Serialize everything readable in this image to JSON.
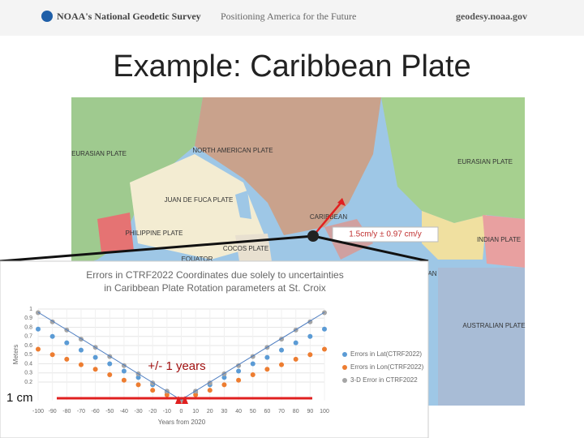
{
  "header": {
    "org": "NOAA's National Geodetic Survey",
    "tagline": "Positioning America for the Future",
    "url": "geodesy.noaa.gov"
  },
  "slide": {
    "title": "Example: Caribbean Plate"
  },
  "map": {
    "plate_labels": [
      "EURASIAN PLATE",
      "NORTH AMERICAN PLATE",
      "JUAN DE FUCA PLATE",
      "PHILIPPINE PLATE",
      "CARIBBEAN",
      "COCOS PLATE",
      "EQUATOR",
      "EURASIAN PLATE",
      "INDIAN PLATE",
      "AN",
      "AUSTRALIAN PLATE"
    ],
    "callout": "1.5cm/y ± 0.97 cm/y"
  },
  "chart_data": {
    "type": "scatter",
    "title": [
      "Errors in CTRF2022 Coordinates due solely to uncertainties",
      "in Caribbean Plate Rotation parameters at St. Croix"
    ],
    "x_label": "Years from 2020",
    "y_label": "Meters",
    "x": [
      -100,
      -90,
      -80,
      -70,
      -60,
      -50,
      -40,
      -30,
      -20,
      -10,
      0,
      10,
      20,
      30,
      40,
      50,
      60,
      70,
      80,
      90,
      100
    ],
    "series": [
      {
        "name": "Errors in Lat(CTRF2022)",
        "color": "#5b9bd5",
        "values": [
          0.78,
          0.7,
          0.63,
          0.55,
          0.47,
          0.4,
          0.32,
          0.25,
          0.17,
          0.09,
          0.01,
          0.09,
          0.17,
          0.25,
          0.32,
          0.4,
          0.47,
          0.55,
          0.63,
          0.7,
          0.78
        ]
      },
      {
        "name": "Errors in Lon(CTRF2022)",
        "color": "#ed7d31",
        "values": [
          0.56,
          0.5,
          0.45,
          0.39,
          0.34,
          0.28,
          0.22,
          0.17,
          0.11,
          0.06,
          0,
          0.06,
          0.11,
          0.17,
          0.22,
          0.28,
          0.34,
          0.39,
          0.45,
          0.5,
          0.56
        ]
      },
      {
        "name": "3-D Error in CTRF2022",
        "color": "#a5a5a5",
        "values": [
          0.96,
          0.86,
          0.77,
          0.67,
          0.58,
          0.48,
          0.38,
          0.29,
          0.19,
          0.1,
          0,
          0.1,
          0.19,
          0.29,
          0.38,
          0.48,
          0.58,
          0.67,
          0.77,
          0.86,
          0.96
        ]
      }
    ],
    "xlim": [
      -100,
      100
    ],
    "ylim": [
      0,
      1
    ],
    "xticks": [
      -100,
      -90,
      -80,
      -70,
      -60,
      -50,
      -40,
      -30,
      -20,
      -10,
      0,
      10,
      20,
      30,
      40,
      50,
      60,
      70,
      80,
      90,
      100
    ],
    "yticks": [
      0.2,
      0.3,
      0.4,
      0.5,
      0.6,
      0.7,
      0.8,
      0.9,
      1
    ],
    "grid": true,
    "annotations": [
      "+/- 1 years",
      "1 cm"
    ]
  }
}
